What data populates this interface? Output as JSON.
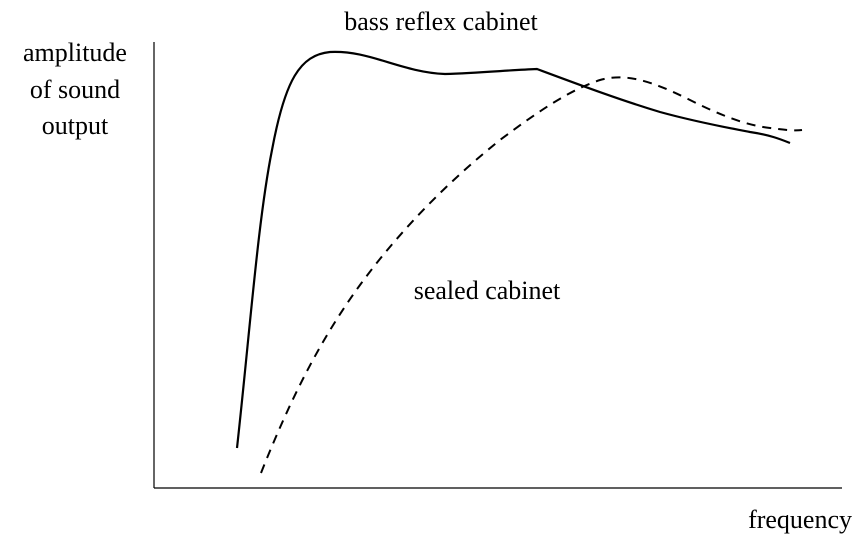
{
  "title": "bass reflex cabinet",
  "y_axis_label": [
    "amplitude",
    "of sound",
    "output"
  ],
  "x_axis_label": "frequency",
  "curves": [
    {
      "label": "bass reflex cabinet"
    },
    {
      "label": "sealed cabinet"
    }
  ]
}
